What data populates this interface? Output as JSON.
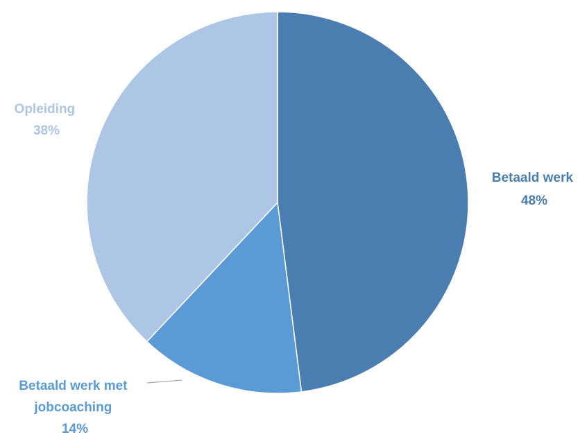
{
  "chart_data": {
    "type": "pie",
    "title": "",
    "slices": [
      {
        "label": "Betaald werk",
        "value": 48,
        "value_label": "48%",
        "color": "#4a7eb0"
      },
      {
        "label": "Betaald werk met jobcoaching",
        "value": 14,
        "value_label": "14%",
        "color": "#5b9bd5"
      },
      {
        "label": "Opleiding",
        "value": 38,
        "value_label": "38%",
        "color": "#adc6e5"
      }
    ],
    "start_angle": "top, clockwise",
    "legend": "none"
  },
  "labels": {
    "slice0_line1": "Betaald werk",
    "slice0_line2": "48%",
    "slice1_line1": "Betaald werk met",
    "slice1_line2": "jobcoaching",
    "slice1_line3": "14%",
    "slice2_line1": "Opleiding",
    "slice2_line2": "38%"
  },
  "colors": {
    "leader_line": "#a6a6a6",
    "slice_border": "#ffffff"
  }
}
